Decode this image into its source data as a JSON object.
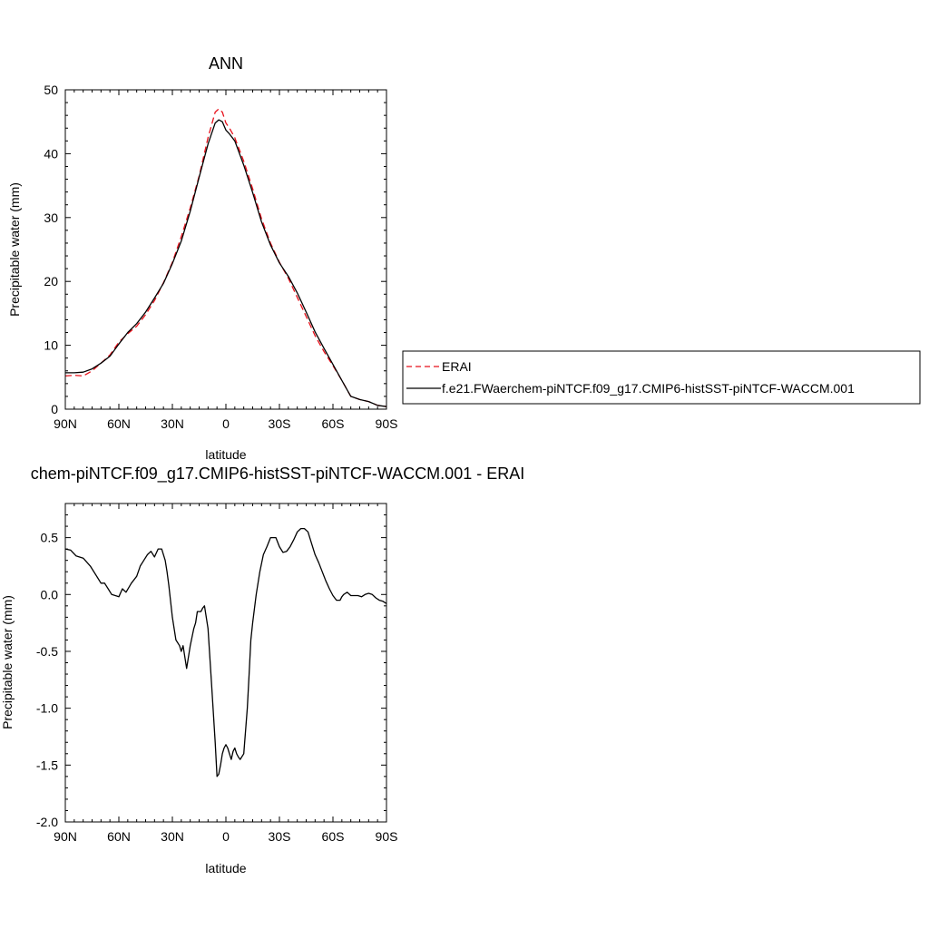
{
  "chart_data": [
    {
      "type": "line",
      "title": "ANN",
      "xlabel": "latitude",
      "ylabel": "Precipitable water (mm)",
      "xlim": [
        90,
        -90
      ],
      "ylim": [
        0,
        50
      ],
      "x_ticks": [
        90,
        60,
        30,
        0,
        -30,
        -60,
        -90
      ],
      "x_tick_labels": [
        "90N",
        "60N",
        "30N",
        "0",
        "30S",
        "60S",
        "90S"
      ],
      "y_ticks": [
        0,
        10,
        20,
        30,
        40,
        50
      ],
      "y_tick_labels": [
        "0",
        "10",
        "20",
        "30",
        "40",
        "50"
      ],
      "legend_position": "right",
      "series": [
        {
          "name": "ERAI",
          "color": "#e8101a",
          "style": "dashed",
          "x": [
            90,
            85,
            80,
            75,
            70,
            65,
            60,
            55,
            50,
            45,
            40,
            35,
            30,
            25,
            20,
            15,
            10,
            6,
            4,
            2,
            0,
            -2,
            -5,
            -10,
            -15,
            -20,
            -25,
            -30,
            -35,
            -40,
            -45,
            -50,
            -55,
            -60,
            -65,
            -70,
            -75,
            -80,
            -85,
            -90
          ],
          "y": [
            5.2,
            5.3,
            5.2,
            6.0,
            7.2,
            8.5,
            10.5,
            11.8,
            13.0,
            14.8,
            17.0,
            19.8,
            23.0,
            27.0,
            31.5,
            36.5,
            42.5,
            46.5,
            47.0,
            46.5,
            44.8,
            44.0,
            42.5,
            38.8,
            34.5,
            29.8,
            26.0,
            23.0,
            20.5,
            17.5,
            14.5,
            11.5,
            9.0,
            6.8,
            4.5,
            2.0,
            1.5,
            1.2,
            0.6,
            0.4
          ]
        },
        {
          "name": "f.e21.FWaerchem-piNTCF.f09_g17.CMIP6-histSST-piNTCF-WACCM.001",
          "color": "#000000",
          "style": "solid",
          "x": [
            90,
            85,
            80,
            75,
            70,
            65,
            60,
            55,
            50,
            45,
            40,
            35,
            30,
            25,
            20,
            15,
            10,
            6,
            4,
            2,
            0,
            -2,
            -5,
            -10,
            -15,
            -20,
            -25,
            -30,
            -35,
            -40,
            -45,
            -50,
            -55,
            -60,
            -65,
            -70,
            -75,
            -80,
            -85,
            -90
          ],
          "y": [
            5.7,
            5.7,
            5.8,
            6.3,
            7.2,
            8.3,
            10.2,
            12.0,
            13.4,
            15.2,
            17.4,
            19.7,
            22.8,
            26.3,
            31.0,
            36.3,
            41.5,
            44.8,
            45.3,
            45.0,
            43.7,
            43.1,
            42.0,
            38.2,
            33.9,
            29.3,
            25.7,
            22.9,
            20.8,
            18.2,
            15.2,
            12.1,
            9.5,
            7.0,
            4.5,
            2.0,
            1.5,
            1.2,
            0.6,
            0.4
          ]
        }
      ]
    },
    {
      "type": "line",
      "title": "chem-piNTCF.f09_g17.CMIP6-histSST-piNTCF-WACCM.001 - ERAI",
      "xlabel": "latitude",
      "ylabel": "Precipitable water (mm)",
      "xlim": [
        90,
        -90
      ],
      "ylim": [
        -2.0,
        0.8
      ],
      "x_ticks": [
        90,
        60,
        30,
        0,
        -30,
        -60,
        -90
      ],
      "x_tick_labels": [
        "90N",
        "60N",
        "30N",
        "0",
        "30S",
        "60S",
        "90S"
      ],
      "y_ticks": [
        -2.0,
        -1.5,
        -1.0,
        -0.5,
        0.0,
        0.5
      ],
      "y_tick_labels": [
        "-2.0",
        "-1.5",
        "-1.0",
        "-0.5",
        "0.0",
        "0.5"
      ],
      "series": [
        {
          "color": "#000000",
          "style": "solid",
          "x": [
            90,
            87,
            84,
            80,
            76,
            72,
            70,
            68,
            66,
            64,
            62,
            60,
            58,
            56,
            53,
            50,
            48,
            46,
            44,
            42,
            40,
            38,
            36,
            34,
            33,
            32,
            30,
            28,
            26,
            25,
            24,
            22,
            20,
            18,
            17,
            16,
            14,
            13,
            12,
            10,
            8,
            6,
            5,
            4,
            3,
            2,
            1,
            0,
            -1,
            -2,
            -3,
            -4,
            -5,
            -6,
            -7,
            -8,
            -10,
            -12,
            -13,
            -14,
            -15,
            -17,
            -19,
            -21,
            -23,
            -25,
            -28,
            -30,
            -32,
            -34,
            -36,
            -38,
            -40,
            -42,
            -44,
            -46,
            -48,
            -50,
            -52,
            -54,
            -56,
            -58,
            -60,
            -62,
            -64,
            -65,
            -66,
            -68,
            -70,
            -72,
            -74,
            -76,
            -78,
            -80,
            -82,
            -84,
            -86,
            -88,
            -90
          ],
          "y": [
            0.4,
            0.39,
            0.34,
            0.32,
            0.25,
            0.15,
            0.1,
            0.1,
            0.05,
            0.0,
            -0.01,
            -0.02,
            0.05,
            0.02,
            0.1,
            0.16,
            0.25,
            0.3,
            0.35,
            0.38,
            0.33,
            0.4,
            0.4,
            0.3,
            0.2,
            0.08,
            -0.2,
            -0.4,
            -0.45,
            -0.5,
            -0.45,
            -0.65,
            -0.45,
            -0.3,
            -0.25,
            -0.15,
            -0.15,
            -0.12,
            -0.1,
            -0.3,
            -0.8,
            -1.3,
            -1.6,
            -1.58,
            -1.5,
            -1.4,
            -1.35,
            -1.32,
            -1.35,
            -1.4,
            -1.45,
            -1.38,
            -1.35,
            -1.4,
            -1.43,
            -1.45,
            -1.4,
            -1.0,
            -0.7,
            -0.4,
            -0.25,
            0.0,
            0.2,
            0.35,
            0.42,
            0.5,
            0.5,
            0.42,
            0.37,
            0.38,
            0.42,
            0.48,
            0.55,
            0.58,
            0.58,
            0.55,
            0.45,
            0.35,
            0.28,
            0.2,
            0.12,
            0.05,
            -0.01,
            -0.05,
            -0.05,
            -0.02,
            0.0,
            0.02,
            -0.01,
            -0.01,
            -0.01,
            -0.02,
            0.0,
            0.01,
            0.0,
            -0.03,
            -0.05,
            -0.06,
            -0.08
          ]
        }
      ]
    }
  ]
}
